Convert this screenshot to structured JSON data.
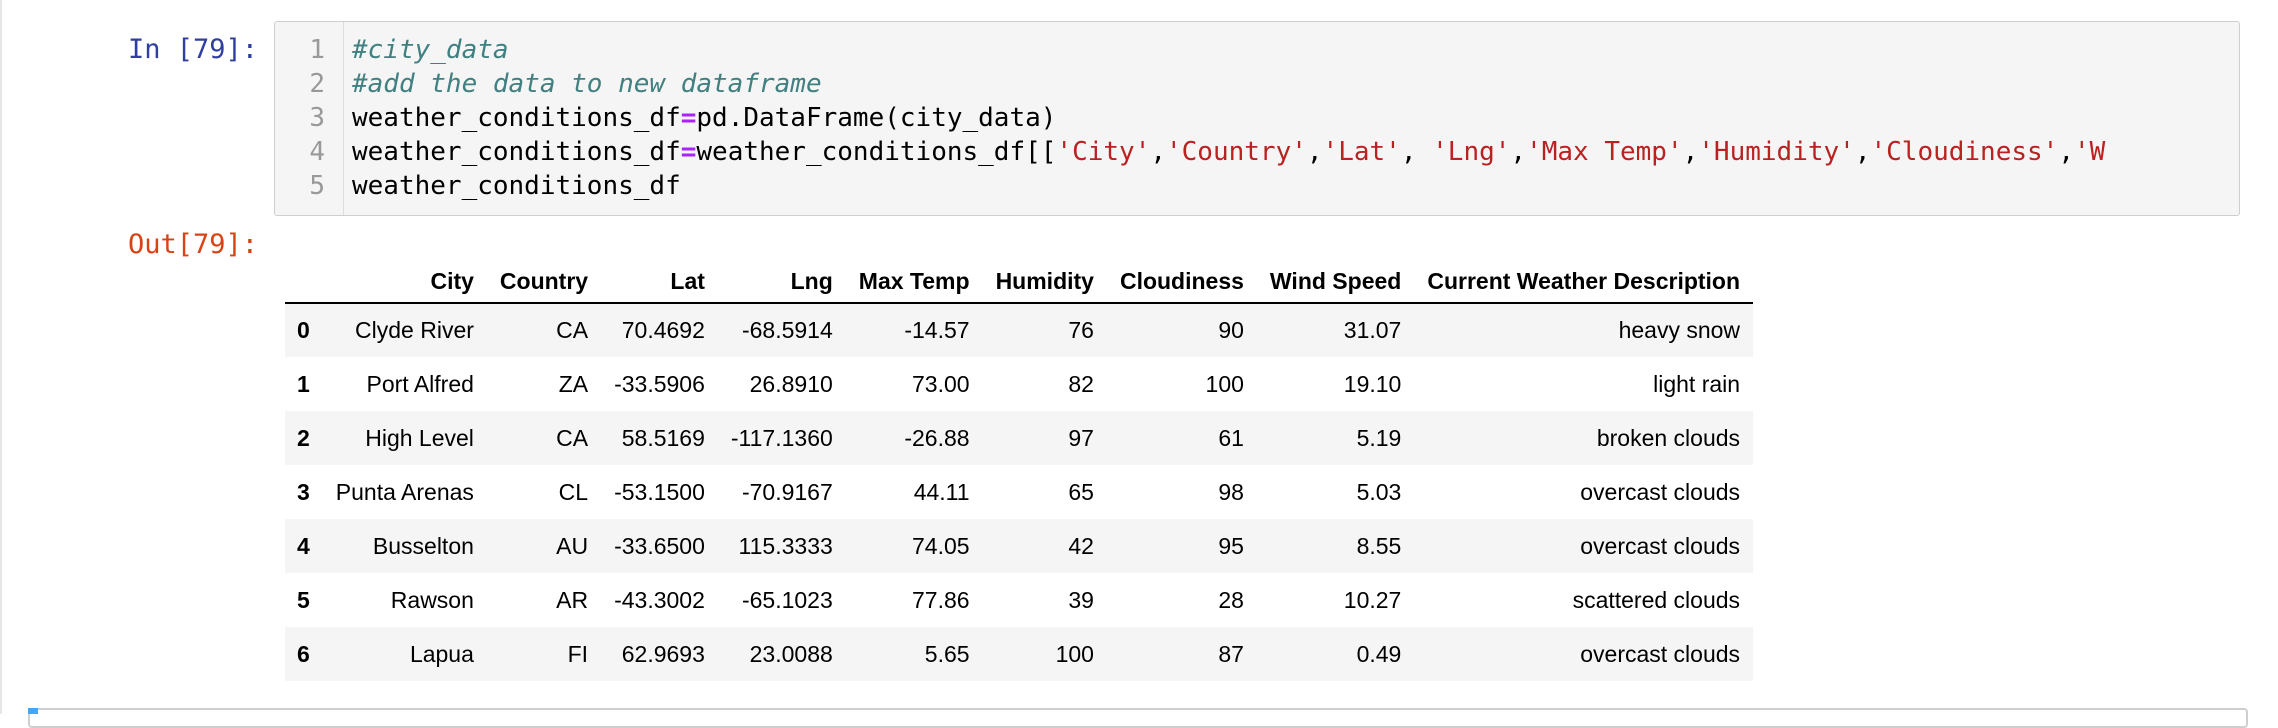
{
  "cell": {
    "in_prompt": "In [79]:",
    "out_prompt": "Out[79]:",
    "code_lines": [
      {
        "no": "1",
        "segments": [
          {
            "t": "comment",
            "v": "#city_data"
          }
        ]
      },
      {
        "no": "2",
        "segments": [
          {
            "t": "comment",
            "v": "#add the data to new dataframe"
          }
        ]
      },
      {
        "no": "3",
        "segments": [
          {
            "t": "plain",
            "v": "weather_conditions_df"
          },
          {
            "t": "op",
            "v": "="
          },
          {
            "t": "plain",
            "v": "pd.DataFrame(city_data)"
          }
        ]
      },
      {
        "no": "4",
        "segments": [
          {
            "t": "plain",
            "v": "weather_conditions_df"
          },
          {
            "t": "op",
            "v": "="
          },
          {
            "t": "plain",
            "v": "weather_conditions_df[["
          },
          {
            "t": "str",
            "v": "'City'"
          },
          {
            "t": "plain",
            "v": ","
          },
          {
            "t": "str",
            "v": "'Country'"
          },
          {
            "t": "plain",
            "v": ","
          },
          {
            "t": "str",
            "v": "'Lat'"
          },
          {
            "t": "plain",
            "v": ", "
          },
          {
            "t": "str",
            "v": "'Lng'"
          },
          {
            "t": "plain",
            "v": ","
          },
          {
            "t": "str",
            "v": "'Max Temp'"
          },
          {
            "t": "plain",
            "v": ","
          },
          {
            "t": "str",
            "v": "'Humidity'"
          },
          {
            "t": "plain",
            "v": ","
          },
          {
            "t": "str",
            "v": "'Cloudiness'"
          },
          {
            "t": "plain",
            "v": ","
          },
          {
            "t": "str",
            "v": "'W"
          }
        ]
      },
      {
        "no": "5",
        "segments": [
          {
            "t": "plain",
            "v": "weather_conditions_df"
          }
        ]
      }
    ]
  },
  "dataframe": {
    "columns": [
      "",
      "City",
      "Country",
      "Lat",
      "Lng",
      "Max Temp",
      "Humidity",
      "Cloudiness",
      "Wind Speed",
      "Current Weather Description"
    ],
    "rows": [
      [
        "0",
        "Clyde River",
        "CA",
        "70.4692",
        "-68.5914",
        "-14.57",
        "76",
        "90",
        "31.07",
        "heavy snow"
      ],
      [
        "1",
        "Port Alfred",
        "ZA",
        "-33.5906",
        "26.8910",
        "73.00",
        "82",
        "100",
        "19.10",
        "light rain"
      ],
      [
        "2",
        "High Level",
        "CA",
        "58.5169",
        "-117.1360",
        "-26.88",
        "97",
        "61",
        "5.19",
        "broken clouds"
      ],
      [
        "3",
        "Punta Arenas",
        "CL",
        "-53.1500",
        "-70.9167",
        "44.11",
        "65",
        "98",
        "5.03",
        "overcast clouds"
      ],
      [
        "4",
        "Busselton",
        "AU",
        "-33.6500",
        "115.3333",
        "74.05",
        "42",
        "95",
        "8.55",
        "overcast clouds"
      ],
      [
        "5",
        "Rawson",
        "AR",
        "-43.3002",
        "-65.1023",
        "77.86",
        "39",
        "28",
        "10.27",
        "scattered clouds"
      ],
      [
        "6",
        "Lapua",
        "FI",
        "62.9693",
        "23.0088",
        "5.65",
        "100",
        "87",
        "0.49",
        "overcast clouds"
      ]
    ]
  }
}
